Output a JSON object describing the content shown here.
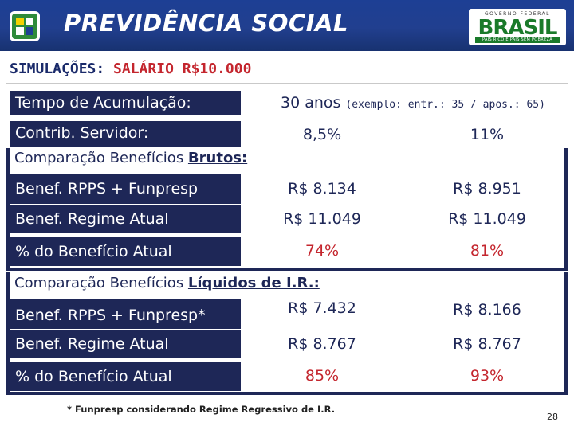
{
  "header": {
    "title": "PREVIDÊNCIA SOCIAL",
    "brasil_top": "GOVERNO FEDERAL",
    "brasil_word": "BRASIL",
    "brasil_tagline": "PAÍS RICO É PAÍS SEM POBREZA"
  },
  "page": {
    "title_prefix": "SIMULAÇÕES: ",
    "title_highlight": "SALÁRIO R$10.000",
    "page_number": "28"
  },
  "params": {
    "tempo_label": "Tempo de Acumulação:",
    "tempo_value": "30 anos",
    "tempo_note": "(exemplo: entr.: 35 / apos.: 65)",
    "contrib_label": "Contrib. Servidor:",
    "contrib_value_1": "8,5%",
    "contrib_value_2": "11%"
  },
  "brutos": {
    "title_prefix": "Comparação Benefícios ",
    "title_bold": "Brutos:",
    "rows": [
      {
        "label": "Benef. RPPS + Funpresp",
        "v1": "R$ 8.134",
        "v2": "R$ 8.951"
      },
      {
        "label": "Benef. Regime Atual",
        "v1": "R$ 11.049",
        "v2": "R$ 11.049"
      },
      {
        "label": "% do Benefício Atual",
        "v1": "74%",
        "v2": "81%"
      }
    ]
  },
  "liquidos": {
    "title_prefix": "Comparação Benefícios ",
    "title_bold": "Líquidos de I.R.:",
    "rows": [
      {
        "label": "Benef. RPPS + Funpresp*",
        "v1": "R$ 7.432",
        "v2": "R$ 8.166"
      },
      {
        "label": "Benef. Regime Atual",
        "v1": "R$ 8.767",
        "v2": "R$ 8.767"
      },
      {
        "label": "% do Benefício Atual",
        "v1": "85%",
        "v2": "93%"
      }
    ]
  },
  "footnote": "* Funpresp considerando Regime Regressivo de I.R.",
  "colors": {
    "navy": "#1e2757",
    "red": "#c4262e",
    "header_blue": "#1d3f94",
    "brasil_green": "#1a7a2a"
  }
}
